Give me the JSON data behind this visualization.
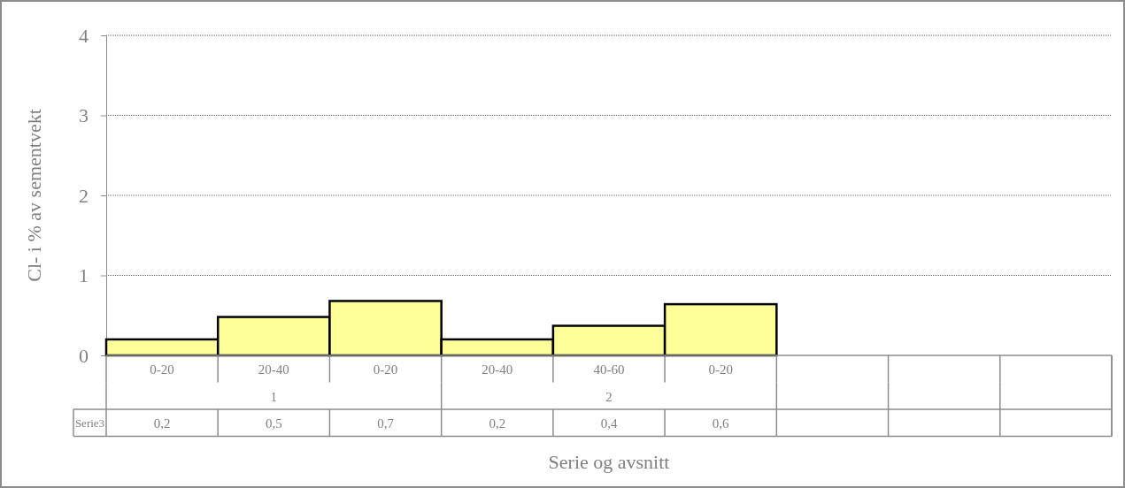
{
  "chart_data": {
    "type": "bar",
    "xlabel": "Serie og avsnitt",
    "ylabel": "Cl- i % av sementvekt",
    "categories": [
      "0-20",
      "20-40",
      "0-20",
      "20-40",
      "40-60",
      "0-20",
      null,
      null,
      null
    ],
    "series": [
      {
        "name": "Serie3",
        "color": "#ffff99",
        "values": [
          0.2,
          0.48,
          0.68,
          0.2,
          0.37,
          0.64,
          null,
          null,
          null
        ],
        "value_labels": [
          "0,2",
          "0,5",
          "0,7",
          "0,2",
          "0,4",
          "0,6",
          null,
          null,
          null
        ]
      }
    ],
    "annotations": [
      "1",
      "2"
    ],
    "ylim": [
      0,
      4
    ],
    "yticks": [
      0,
      1,
      2,
      3,
      4
    ],
    "grid": "y"
  }
}
